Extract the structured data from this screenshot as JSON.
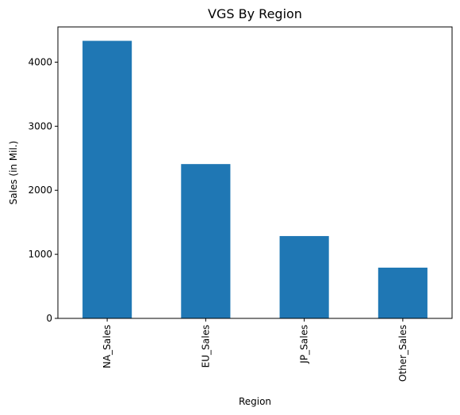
{
  "chart_data": {
    "type": "bar",
    "title": "VGS By Region",
    "xlabel": "Region",
    "ylabel": "Sales (in Mil.)",
    "categories": [
      "NA_Sales",
      "EU_Sales",
      "JP_Sales",
      "Other_Sales"
    ],
    "values": [
      4333,
      2409,
      1285,
      792
    ],
    "ylim": [
      0,
      4550
    ],
    "yticks": [
      0,
      1000,
      2000,
      3000,
      4000
    ],
    "grid": false,
    "bar_color": "#1f77b4",
    "xtick_rotation": "vertical"
  }
}
